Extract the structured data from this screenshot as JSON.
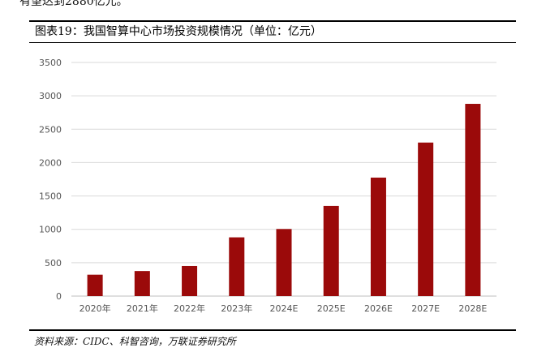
{
  "intro_text": "有望达到2880亿元。",
  "figure_title": "图表19：我国智算中心市场投资规模情况（单位：亿元）",
  "source": "资料来源：CIDC、科智咨询，万联证券研究所",
  "colors": {
    "bar": "#9b0a0a",
    "grid": "#d9d9d9",
    "axis": "#bfbfbf"
  },
  "chart_data": {
    "type": "bar",
    "title": "我国智算中心市场投资规模情况（单位：亿元）",
    "xlabel": "",
    "ylabel": "",
    "categories": [
      "2020年",
      "2021年",
      "2022年",
      "2023年",
      "2024E",
      "2025E",
      "2026E",
      "2027E",
      "2028E"
    ],
    "values": [
      320,
      375,
      450,
      880,
      1005,
      1350,
      1775,
      2300,
      2880
    ],
    "ylim": [
      0,
      3500
    ],
    "yticks": [
      0,
      500,
      1000,
      1500,
      2000,
      2500,
      3000,
      3500
    ],
    "grid": true,
    "legend": "none"
  }
}
